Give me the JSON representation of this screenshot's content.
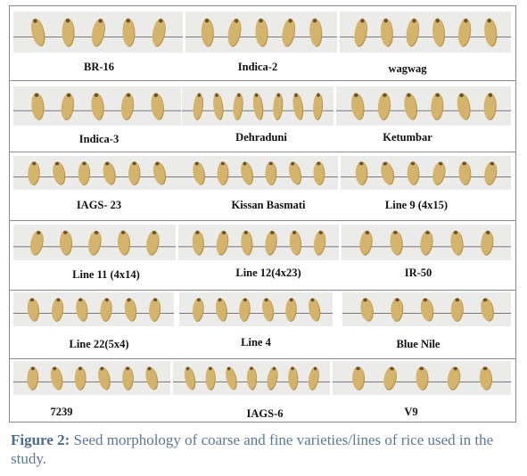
{
  "figure": {
    "caption_label": "Figure 2:",
    "caption_text": "Seed morphology of coarse and fine varieties/lines of rice used in the study."
  },
  "colors": {
    "panel_background": "#ebebea",
    "baseline": "#7b7b7b",
    "seed_fill": "#d4b36a",
    "seed_shadow": "#b89448",
    "seed_dark_tip": "#6b5128",
    "frame_border": "#8a8a8a",
    "caption_color": "#5b7896"
  },
  "varieties": [
    {
      "name": "BR-16",
      "seeds": 5
    },
    {
      "name": "Indica-2",
      "seeds": 5
    },
    {
      "name": "wagwag",
      "seeds": 6
    },
    {
      "name": "Indica-3",
      "seeds": 5
    },
    {
      "name": "Dehraduni",
      "seeds": 7
    },
    {
      "name": "Ketumbar",
      "seeds": 6
    },
    {
      "name": "IAGS- 23",
      "seeds": 6
    },
    {
      "name": "Kissan Basmati",
      "seeds": 6
    },
    {
      "name": "Line 9 (4x15)",
      "seeds": 6
    },
    {
      "name": "Line 11 (4x14)",
      "seeds": 5
    },
    {
      "name": "Line 12(4x23)",
      "seeds": 6
    },
    {
      "name": "IR-50",
      "seeds": 5
    },
    {
      "name": "Line 22(5x4)",
      "seeds": 6
    },
    {
      "name": "Line 4",
      "seeds": 6
    },
    {
      "name": "Blue Nile",
      "seeds": 5
    },
    {
      "name": "7239",
      "seeds": 6
    },
    {
      "name": "IAGS-6",
      "seeds": 7
    },
    {
      "name": "V9",
      "seeds": 5
    }
  ]
}
